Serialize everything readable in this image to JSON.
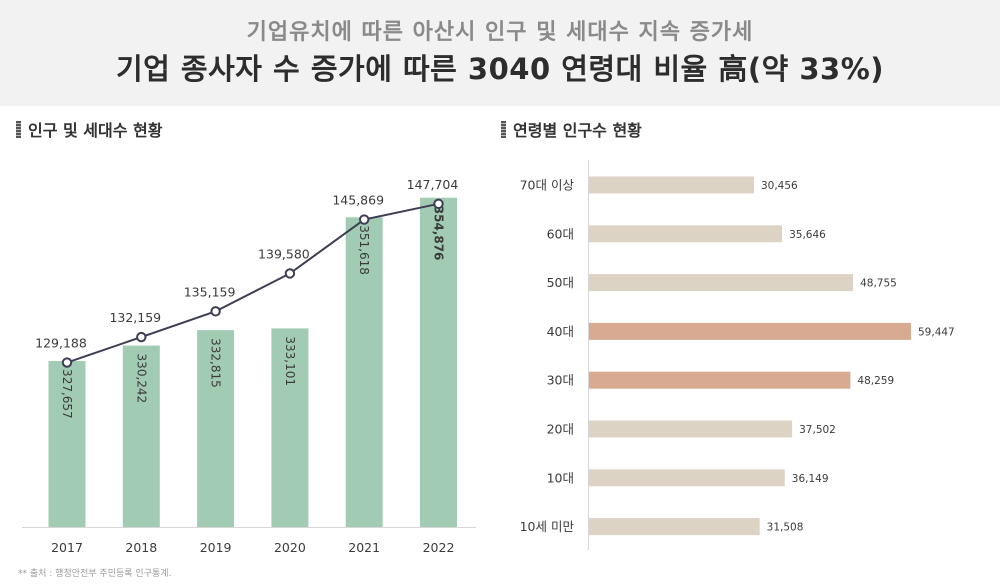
{
  "header": {
    "subtitle": "기업유치에 따른 아산시 인구 및 세대수 지속 증가세",
    "title": "기업 종사자 수 증가에 따른 3040 연령대 비율 高(약 33%)"
  },
  "left_panel": {
    "title": "인구 및 세대수 현황"
  },
  "right_panel": {
    "title": "연령별 인구수 현황"
  },
  "source": "** 출처 : 행정안전부 주민등록 인구통계.",
  "colors": {
    "bar_green": "#a2cbb3",
    "line": "#3d3d55",
    "bar_beige": "#ddd3c4",
    "bar_highlight": "#d8aa92"
  },
  "chart_data": [
    {
      "type": "bar",
      "categories": [
        "2017",
        "2018",
        "2019",
        "2020",
        "2021",
        "2022"
      ],
      "series": [
        {
          "values": [
            327657,
            330242,
            332815,
            333101,
            351618,
            354876
          ],
          "labels": [
            "327,657",
            "330,242",
            "332,815",
            "333,101",
            "351,618",
            "354,876"
          ]
        },
        {
          "type": "line",
          "values": [
            129188,
            132159,
            135159,
            139580,
            145869,
            147704
          ],
          "labels": [
            "129,188",
            "132,159",
            "135,159",
            "139,580",
            "145,869",
            "147,704"
          ]
        }
      ],
      "bar_ylim": [
        300000,
        360000
      ],
      "line_ylim": [
        110000,
        152000
      ],
      "emphasized_label_index": 5
    },
    {
      "type": "bar",
      "orientation": "horizontal",
      "categories": [
        "70대 이상",
        "60대",
        "50대",
        "40대",
        "30대",
        "20대",
        "10대",
        "10세 미만"
      ],
      "values": [
        30456,
        35646,
        48755,
        59447,
        48259,
        37502,
        36149,
        31508
      ],
      "labels": [
        "30,456",
        "35,646",
        "48,755",
        "59,447",
        "48,259",
        "37,502",
        "36,149",
        "31,508"
      ],
      "highlighted": [
        "40대",
        "30대"
      ],
      "xlim": [
        0,
        59447
      ]
    }
  ]
}
